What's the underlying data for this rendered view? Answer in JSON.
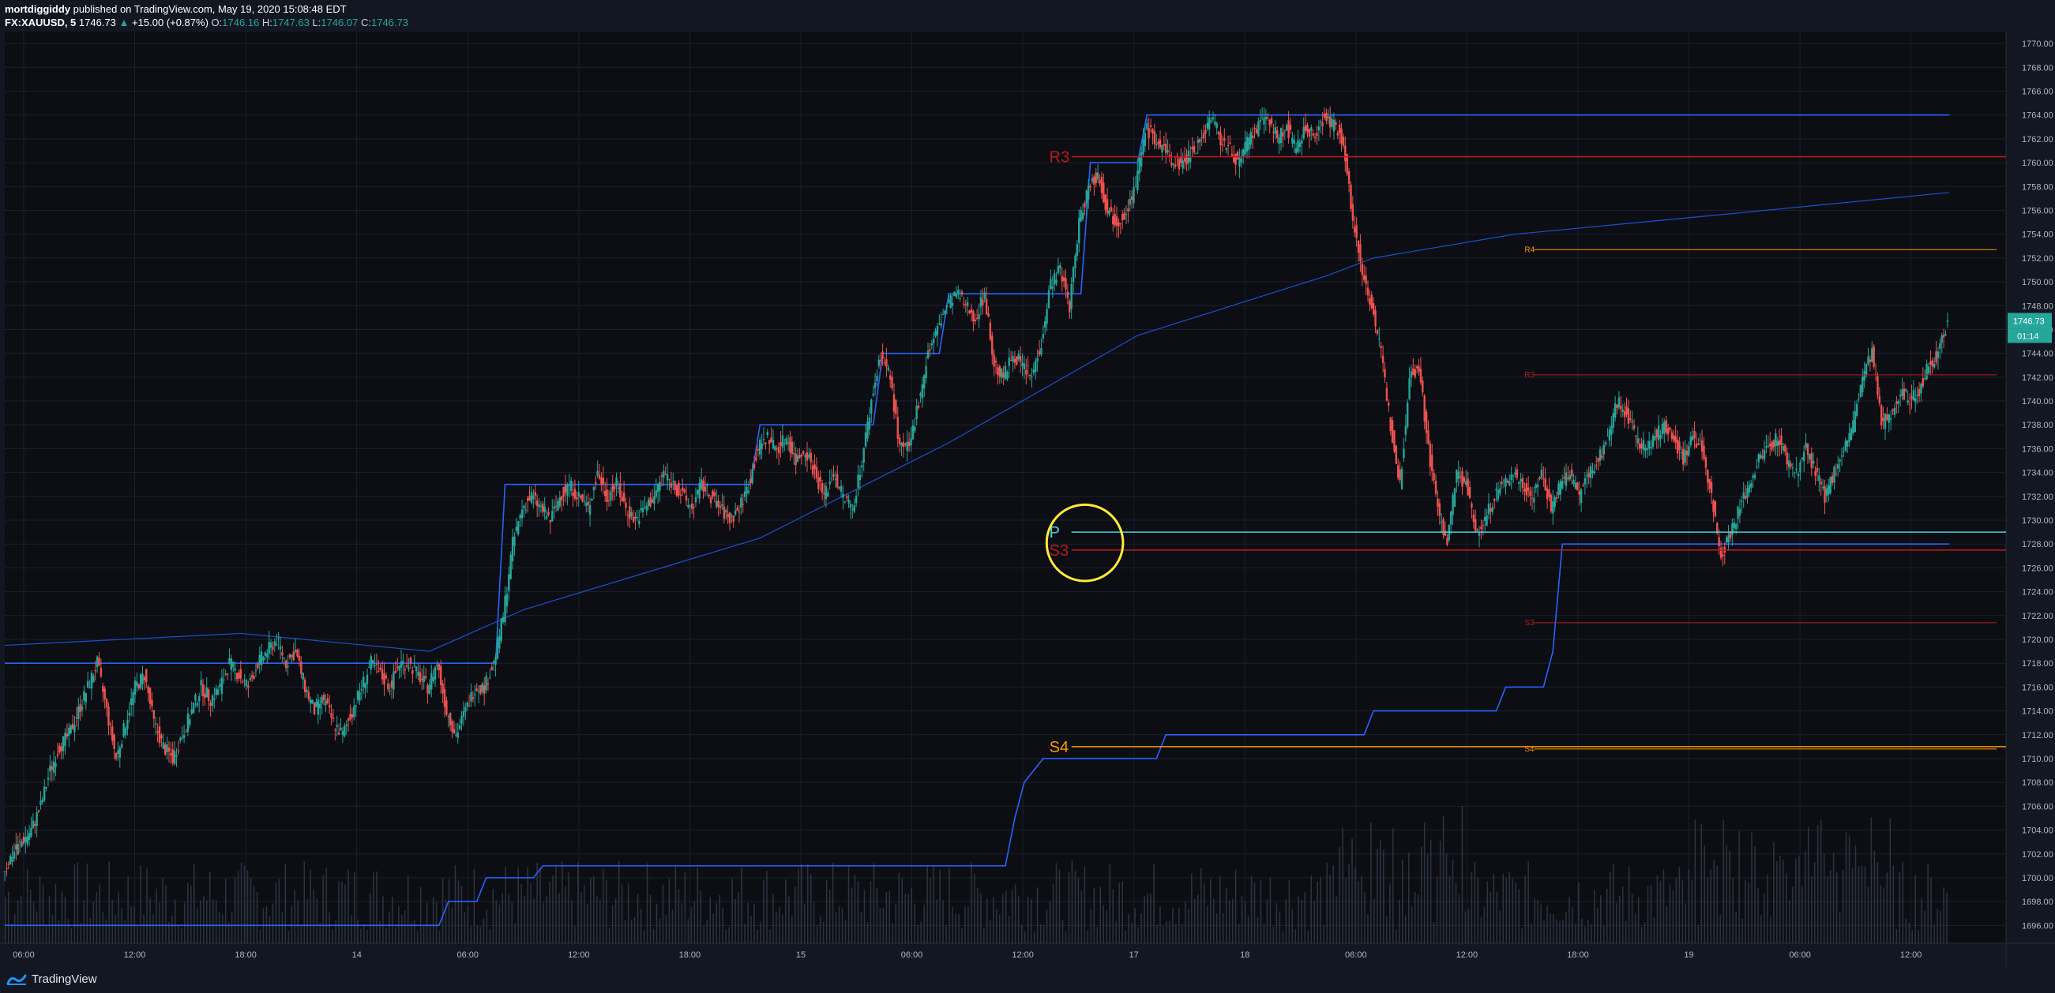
{
  "header": {
    "author": "mortdiggiddy",
    "published": "published on TradingView.com, May 19, 2020 15:08:48 EDT",
    "symbol": "FX:XAUUSD, 5",
    "last": "1746.73",
    "change": "+15.00 (+0.87%)",
    "o_label": "O:",
    "o": "1746.16",
    "h_label": "H:",
    "h": "1747.63",
    "l_label": "L:",
    "l": "1746.07",
    "c_label": "C:",
    "c": "1746.73"
  },
  "footer": {
    "brand": "TradingView",
    "brand_icon": "tradingview-logo-icon"
  },
  "colors": {
    "background": "#131722",
    "grid": "#1c2030",
    "up": "#26a69a",
    "down": "#ef5350",
    "pivot_blue": "#2962ff",
    "pivot_p": "#4dd0e1",
    "resistance": "#b71c1c",
    "support_s4": "#ff9800",
    "r4": "#ff9800",
    "highlight_circle": "#ffeb3b",
    "volume": "#3a4456"
  },
  "chart_data": {
    "type": "candlestick",
    "symbol": "FX:XAUUSD",
    "interval": "5",
    "ylim": [
      1694.5,
      1771
    ],
    "y_ticks": [
      "1770.00",
      "1768.00",
      "1766.00",
      "1764.00",
      "1762.00",
      "1760.00",
      "1758.00",
      "1756.00",
      "1754.00",
      "1752.00",
      "1750.00",
      "1748.00",
      "1746.00",
      "1744.00",
      "1742.00",
      "1740.00",
      "1738.00",
      "1736.00",
      "1734.00",
      "1732.00",
      "1730.00",
      "1728.00",
      "1726.00",
      "1724.00",
      "1722.00",
      "1720.00",
      "1718.00",
      "1716.00",
      "1714.00",
      "1712.00",
      "1710.00",
      "1708.00",
      "1706.00",
      "1704.00",
      "1702.00",
      "1700.00",
      "1698.00",
      "1696.00"
    ],
    "x_ticks": [
      "06:00",
      "12:00",
      "18:00",
      "14",
      "06:00",
      "12:00",
      "18:00",
      "15",
      "06:00",
      "12:00",
      "17",
      "18",
      "06:00",
      "12:00",
      "18:00",
      "19",
      "06:00",
      "12:00"
    ],
    "last_price_label": "1746.73",
    "countdown_label": "01:14",
    "price_path": [
      [
        0,
        1700.5
      ],
      [
        1,
        1702
      ],
      [
        2,
        1703
      ],
      [
        3,
        1704
      ],
      [
        4,
        1706
      ],
      [
        5,
        1709
      ],
      [
        6,
        1711
      ],
      [
        7,
        1712
      ],
      [
        8,
        1714
      ],
      [
        9,
        1716
      ],
      [
        10,
        1718
      ],
      [
        11,
        1714
      ],
      [
        12,
        1710
      ],
      [
        13,
        1713
      ],
      [
        14,
        1716
      ],
      [
        15,
        1717
      ],
      [
        16,
        1713
      ],
      [
        17,
        1711
      ],
      [
        18,
        1710
      ],
      [
        19,
        1712
      ],
      [
        20,
        1714
      ],
      [
        21,
        1716
      ],
      [
        22,
        1715
      ],
      [
        23,
        1716
      ],
      [
        24,
        1718
      ],
      [
        25,
        1717
      ],
      [
        26,
        1716
      ],
      [
        27,
        1718
      ],
      [
        28,
        1719
      ],
      [
        29,
        1720
      ],
      [
        30,
        1718
      ],
      [
        31,
        1719
      ],
      [
        32,
        1716
      ],
      [
        33,
        1714
      ],
      [
        34,
        1715
      ],
      [
        35,
        1713
      ],
      [
        36,
        1712
      ],
      [
        37,
        1714
      ],
      [
        38,
        1716
      ],
      [
        39,
        1718
      ],
      [
        40,
        1717
      ],
      [
        41,
        1716
      ],
      [
        42,
        1718
      ],
      [
        43,
        1718
      ],
      [
        44,
        1717
      ],
      [
        45,
        1716
      ],
      [
        46,
        1718
      ],
      [
        47,
        1714
      ],
      [
        48,
        1712
      ],
      [
        49,
        1714
      ],
      [
        50,
        1716
      ],
      [
        51,
        1716
      ],
      [
        52,
        1718
      ],
      [
        53,
        1722
      ],
      [
        54,
        1728
      ],
      [
        55,
        1731
      ],
      [
        56,
        1732
      ],
      [
        57,
        1731
      ],
      [
        58,
        1730
      ],
      [
        59,
        1732
      ],
      [
        60,
        1733
      ],
      [
        61,
        1732
      ],
      [
        62,
        1731
      ],
      [
        63,
        1734
      ],
      [
        64,
        1732
      ],
      [
        65,
        1733
      ],
      [
        66,
        1731
      ],
      [
        67,
        1730
      ],
      [
        68,
        1731
      ],
      [
        69,
        1732
      ],
      [
        70,
        1734
      ],
      [
        71,
        1733
      ],
      [
        72,
        1732
      ],
      [
        73,
        1731
      ],
      [
        74,
        1733
      ],
      [
        75,
        1732
      ],
      [
        76,
        1731
      ],
      [
        77,
        1730
      ],
      [
        78,
        1731
      ],
      [
        79,
        1733
      ],
      [
        80,
        1736
      ],
      [
        81,
        1737
      ],
      [
        82,
        1736
      ],
      [
        83,
        1737
      ],
      [
        84,
        1735
      ],
      [
        85,
        1736
      ],
      [
        86,
        1734
      ],
      [
        87,
        1732
      ],
      [
        88,
        1734
      ],
      [
        89,
        1732
      ],
      [
        90,
        1731
      ],
      [
        91,
        1735
      ],
      [
        92,
        1740
      ],
      [
        93,
        1744
      ],
      [
        94,
        1742
      ],
      [
        95,
        1736
      ],
      [
        96,
        1736
      ],
      [
        97,
        1740
      ],
      [
        98,
        1744
      ],
      [
        99,
        1746
      ],
      [
        100,
        1748
      ],
      [
        101,
        1749
      ],
      [
        102,
        1748
      ],
      [
        103,
        1747
      ],
      [
        104,
        1749
      ],
      [
        105,
        1743
      ],
      [
        106,
        1742
      ],
      [
        107,
        1744
      ],
      [
        108,
        1743
      ],
      [
        109,
        1742
      ],
      [
        110,
        1745
      ],
      [
        111,
        1750
      ],
      [
        112,
        1751
      ],
      [
        113,
        1748
      ],
      [
        114,
        1755
      ],
      [
        115,
        1758
      ],
      [
        116,
        1759
      ],
      [
        117,
        1756
      ],
      [
        118,
        1755
      ],
      [
        119,
        1756
      ],
      [
        120,
        1758
      ],
      [
        121,
        1763
      ],
      [
        122,
        1762
      ],
      [
        123,
        1761
      ],
      [
        124,
        1760
      ],
      [
        125,
        1760
      ],
      [
        126,
        1761
      ],
      [
        127,
        1762
      ],
      [
        128,
        1764
      ],
      [
        129,
        1762
      ],
      [
        130,
        1761
      ],
      [
        131,
        1760
      ],
      [
        132,
        1762
      ],
      [
        133,
        1763
      ],
      [
        134,
        1764
      ],
      [
        135,
        1762
      ],
      [
        136,
        1763
      ],
      [
        137,
        1761
      ],
      [
        138,
        1763
      ],
      [
        139,
        1762
      ],
      [
        140,
        1764
      ],
      [
        141,
        1763
      ],
      [
        142,
        1762
      ],
      [
        143,
        1755
      ],
      [
        144,
        1751
      ],
      [
        145,
        1748
      ],
      [
        146,
        1744
      ],
      [
        147,
        1738
      ],
      [
        148,
        1733
      ],
      [
        149,
        1742
      ],
      [
        150,
        1743
      ],
      [
        151,
        1736
      ],
      [
        152,
        1731
      ],
      [
        153,
        1728
      ],
      [
        154,
        1734
      ],
      [
        155,
        1733
      ],
      [
        156,
        1729
      ],
      [
        157,
        1730
      ],
      [
        158,
        1732
      ],
      [
        159,
        1733
      ],
      [
        160,
        1734
      ],
      [
        161,
        1733
      ],
      [
        162,
        1732
      ],
      [
        163,
        1734
      ],
      [
        164,
        1731
      ],
      [
        165,
        1733
      ],
      [
        166,
        1734
      ],
      [
        167,
        1732
      ],
      [
        168,
        1734
      ],
      [
        169,
        1735
      ],
      [
        170,
        1737
      ],
      [
        171,
        1740
      ],
      [
        172,
        1739
      ],
      [
        173,
        1737
      ],
      [
        174,
        1736
      ],
      [
        175,
        1737
      ],
      [
        176,
        1738
      ],
      [
        177,
        1737
      ],
      [
        178,
        1735
      ],
      [
        179,
        1737
      ],
      [
        180,
        1736
      ],
      [
        181,
        1732
      ],
      [
        182,
        1727
      ],
      [
        183,
        1729
      ],
      [
        184,
        1731
      ],
      [
        185,
        1733
      ],
      [
        186,
        1735
      ],
      [
        187,
        1736
      ],
      [
        188,
        1737
      ],
      [
        189,
        1735
      ],
      [
        190,
        1734
      ],
      [
        191,
        1736
      ],
      [
        192,
        1734
      ],
      [
        193,
        1732
      ],
      [
        194,
        1734
      ],
      [
        195,
        1736
      ],
      [
        196,
        1738
      ],
      [
        197,
        1742
      ],
      [
        198,
        1744
      ],
      [
        199,
        1738
      ],
      [
        200,
        1739
      ],
      [
        201,
        1741
      ],
      [
        202,
        1740
      ],
      [
        203,
        1741
      ],
      [
        204,
        1743
      ],
      [
        205,
        1744
      ],
      [
        206,
        1746.73
      ]
    ],
    "stepped_levels": [
      {
        "name": "daily-high",
        "color": "#2962ff",
        "points": [
          [
            0,
            1718
          ],
          [
            52,
            1718
          ],
          [
            53,
            1733
          ],
          [
            79,
            1733
          ],
          [
            80,
            1738
          ],
          [
            92,
            1738
          ],
          [
            93,
            1744
          ],
          [
            99,
            1744
          ],
          [
            100,
            1749
          ],
          [
            114,
            1749
          ],
          [
            115,
            1760
          ],
          [
            120,
            1760
          ],
          [
            121,
            1764
          ],
          [
            206,
            1764
          ]
        ]
      },
      {
        "name": "daily-low",
        "color": "#2962ff",
        "points": [
          [
            0,
            1696
          ],
          [
            46,
            1696
          ],
          [
            47,
            1698
          ],
          [
            50,
            1698
          ],
          [
            51,
            1700
          ],
          [
            56,
            1700
          ],
          [
            57,
            1701
          ],
          [
            106,
            1701
          ],
          [
            107,
            1705
          ],
          [
            108,
            1708
          ],
          [
            110,
            1710
          ],
          [
            122,
            1710
          ],
          [
            123,
            1712
          ],
          [
            144,
            1712
          ],
          [
            145,
            1714
          ],
          [
            158,
            1714
          ],
          [
            159,
            1716
          ],
          [
            163,
            1716
          ],
          [
            164,
            1719
          ],
          [
            165,
            1728
          ],
          [
            206,
            1728
          ]
        ]
      }
    ],
    "vwap": [
      [
        0,
        1719.5
      ],
      [
        25,
        1720.5
      ],
      [
        45,
        1719
      ],
      [
        55,
        1722.5
      ],
      [
        80,
        1728.5
      ],
      [
        100,
        1736.5
      ],
      [
        120,
        1745.5
      ],
      [
        140,
        1750.5
      ],
      [
        145,
        1752
      ],
      [
        160,
        1754
      ],
      [
        180,
        1755.5
      ],
      [
        206,
        1757.5
      ]
    ],
    "pivot_levels": [
      {
        "label": "R3",
        "value": 1760.5,
        "x_from": 113,
        "x_to": 212,
        "color": "#b71c1c",
        "label_size": "large"
      },
      {
        "label": "P",
        "value": 1729,
        "x_from": 113,
        "x_to": 212,
        "color": "#4dd0e1",
        "label_size": "large"
      },
      {
        "label": "S3",
        "value": 1727.5,
        "x_from": 113,
        "x_to": 212,
        "color": "#b71c1c",
        "label_size": "large"
      },
      {
        "label": "S4",
        "value": 1711,
        "x_from": 113,
        "x_to": 212,
        "color": "#ff9800",
        "label_size": "large"
      },
      {
        "label": "R4",
        "value": 1752.7,
        "x_from": 162,
        "x_to": 211,
        "color": "#ff9800",
        "label_size": "small"
      },
      {
        "label": "R3",
        "value": 1742.2,
        "x_from": 162,
        "x_to": 211,
        "color": "#b71c1c",
        "label_size": "small"
      },
      {
        "label": "S3",
        "value": 1721.4,
        "x_from": 162,
        "x_to": 211,
        "color": "#b71c1c",
        "label_size": "small"
      },
      {
        "label": "S4",
        "value": 1710.8,
        "x_from": 162,
        "x_to": 211,
        "color": "#ff9800",
        "label_size": "small"
      }
    ],
    "annotation_circle": {
      "center_x": 114.5,
      "center_y": 1728.1,
      "radius_y": 3.2
    }
  }
}
